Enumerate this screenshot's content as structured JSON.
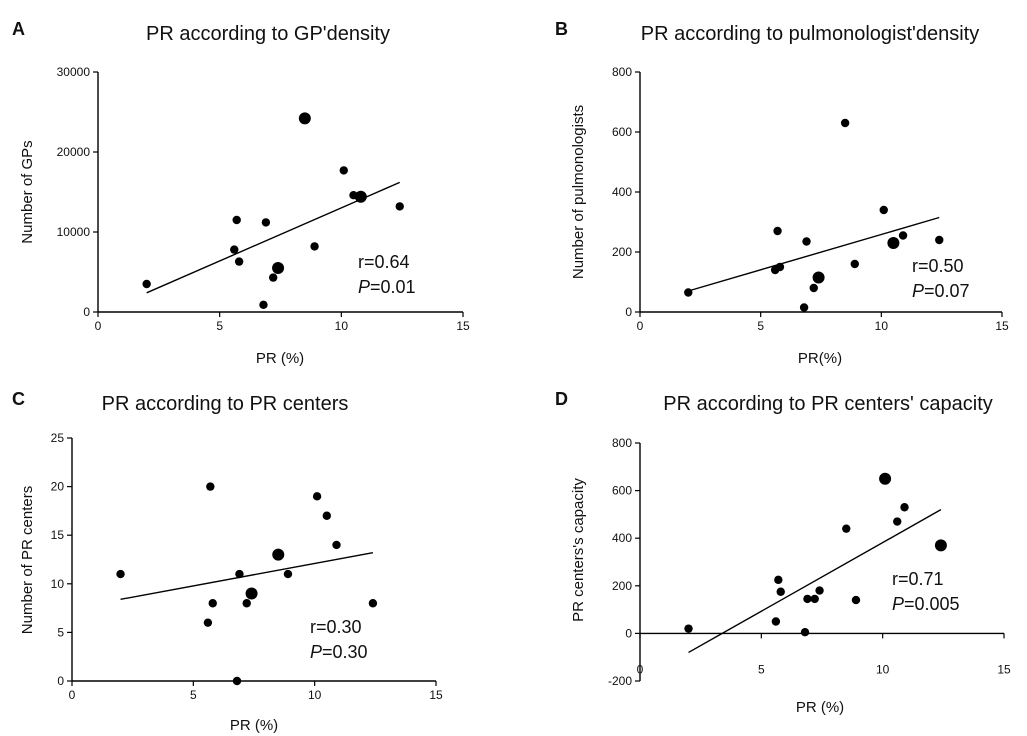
{
  "chart_data": [
    {
      "panel": "A",
      "type": "scatter",
      "title": "PR according to GP'density",
      "xlabel": "PR (%)",
      "ylabel": "Number of GPs",
      "xlim": [
        0,
        15
      ],
      "ylim": [
        0,
        30000
      ],
      "xticks": [
        "0",
        "5",
        "10",
        "15"
      ],
      "yticks": [
        "0",
        "10000",
        "20000",
        "30000"
      ],
      "r_text": "r=0.64",
      "p_label": "P",
      "p_value": "=0.01",
      "fit": {
        "x": [
          2.0,
          12.4
        ],
        "y": [
          2400,
          16200
        ]
      },
      "points": [
        {
          "x": 2.0,
          "y": 3500,
          "big": false
        },
        {
          "x": 5.6,
          "y": 7800,
          "big": false
        },
        {
          "x": 5.7,
          "y": 11500,
          "big": false
        },
        {
          "x": 5.8,
          "y": 6300,
          "big": false
        },
        {
          "x": 6.8,
          "y": 900,
          "big": false
        },
        {
          "x": 6.9,
          "y": 11200,
          "big": false
        },
        {
          "x": 7.2,
          "y": 4300,
          "big": false
        },
        {
          "x": 7.4,
          "y": 5500,
          "big": true
        },
        {
          "x": 8.5,
          "y": 24200,
          "big": true
        },
        {
          "x": 8.9,
          "y": 8200,
          "big": false
        },
        {
          "x": 10.1,
          "y": 17700,
          "big": false
        },
        {
          "x": 10.5,
          "y": 14600,
          "big": false
        },
        {
          "x": 10.8,
          "y": 14400,
          "big": true
        },
        {
          "x": 12.4,
          "y": 13200,
          "big": false
        }
      ]
    },
    {
      "panel": "B",
      "type": "scatter",
      "title": "PR according to pulmonologist'density",
      "xlabel": "PR(%)",
      "ylabel": "Number of pulmonologists",
      "xlim": [
        0,
        15
      ],
      "ylim": [
        0,
        800
      ],
      "xticks": [
        "0",
        "5",
        "10",
        "15"
      ],
      "yticks": [
        "0",
        "200",
        "400",
        "600",
        "800"
      ],
      "r_text": "r=0.50",
      "p_label": "P",
      "p_value": "=0.07",
      "fit": {
        "x": [
          2.0,
          12.4
        ],
        "y": [
          70,
          315
        ]
      },
      "points": [
        {
          "x": 2.0,
          "y": 65,
          "big": false
        },
        {
          "x": 5.6,
          "y": 140,
          "big": false
        },
        {
          "x": 5.7,
          "y": 270,
          "big": false
        },
        {
          "x": 5.8,
          "y": 150,
          "big": false
        },
        {
          "x": 6.8,
          "y": 15,
          "big": false
        },
        {
          "x": 6.9,
          "y": 235,
          "big": false
        },
        {
          "x": 7.2,
          "y": 80,
          "big": false
        },
        {
          "x": 7.4,
          "y": 115,
          "big": true
        },
        {
          "x": 8.5,
          "y": 630,
          "big": false
        },
        {
          "x": 8.9,
          "y": 160,
          "big": false
        },
        {
          "x": 10.1,
          "y": 340,
          "big": false
        },
        {
          "x": 10.5,
          "y": 230,
          "big": true
        },
        {
          "x": 10.9,
          "y": 255,
          "big": false
        },
        {
          "x": 12.4,
          "y": 240,
          "big": false
        }
      ]
    },
    {
      "panel": "C",
      "type": "scatter",
      "title": "PR according to PR centers",
      "xlabel": "PR (%)",
      "ylabel": "Number of PR centers",
      "xlim": [
        0,
        15
      ],
      "ylim": [
        0,
        25
      ],
      "xticks": [
        "0",
        "5",
        "10",
        "15"
      ],
      "yticks": [
        "0",
        "5",
        "10",
        "15",
        "20",
        "25"
      ],
      "r_text": "r=0.30",
      "p_label": "P",
      "p_value": "=0.30",
      "fit": {
        "x": [
          2.0,
          12.4
        ],
        "y": [
          8.4,
          13.2
        ]
      },
      "points": [
        {
          "x": 2.0,
          "y": 11,
          "big": false
        },
        {
          "x": 5.6,
          "y": 6,
          "big": false
        },
        {
          "x": 5.7,
          "y": 20,
          "big": false
        },
        {
          "x": 5.8,
          "y": 8,
          "big": false
        },
        {
          "x": 6.8,
          "y": 0,
          "big": false
        },
        {
          "x": 6.9,
          "y": 11,
          "big": false
        },
        {
          "x": 7.2,
          "y": 8,
          "big": false
        },
        {
          "x": 7.4,
          "y": 9,
          "big": true
        },
        {
          "x": 8.5,
          "y": 13,
          "big": true
        },
        {
          "x": 8.9,
          "y": 11,
          "big": false
        },
        {
          "x": 10.1,
          "y": 19,
          "big": false
        },
        {
          "x": 10.5,
          "y": 17,
          "big": false
        },
        {
          "x": 10.9,
          "y": 14,
          "big": false
        },
        {
          "x": 12.4,
          "y": 8,
          "big": false
        }
      ]
    },
    {
      "panel": "D",
      "type": "scatter",
      "title": "PR according to PR centers' capacity",
      "xlabel": "PR (%)",
      "ylabel": "PR centers's capacity",
      "xlim": [
        0,
        15
      ],
      "ylim": [
        -200,
        800
      ],
      "xticks": [
        "0",
        "5",
        "10",
        "15"
      ],
      "yticks": [
        "-200",
        "0",
        "200",
        "400",
        "600",
        "800"
      ],
      "r_text": "r=0.71",
      "p_label": "P",
      "p_value": "=0.005",
      "fit": {
        "x": [
          2.0,
          12.4
        ],
        "y": [
          -80,
          520
        ]
      },
      "points": [
        {
          "x": 2.0,
          "y": 20,
          "big": false
        },
        {
          "x": 5.6,
          "y": 50,
          "big": false
        },
        {
          "x": 5.7,
          "y": 225,
          "big": false
        },
        {
          "x": 5.8,
          "y": 175,
          "big": false
        },
        {
          "x": 6.8,
          "y": 5,
          "big": false
        },
        {
          "x": 6.9,
          "y": 145,
          "big": false
        },
        {
          "x": 7.2,
          "y": 145,
          "big": false
        },
        {
          "x": 7.4,
          "y": 180,
          "big": false
        },
        {
          "x": 8.5,
          "y": 440,
          "big": false
        },
        {
          "x": 8.9,
          "y": 140,
          "big": false
        },
        {
          "x": 10.1,
          "y": 650,
          "big": true
        },
        {
          "x": 10.6,
          "y": 470,
          "big": false
        },
        {
          "x": 10.9,
          "y": 530,
          "big": false
        },
        {
          "x": 12.4,
          "y": 370,
          "big": true
        }
      ]
    }
  ]
}
